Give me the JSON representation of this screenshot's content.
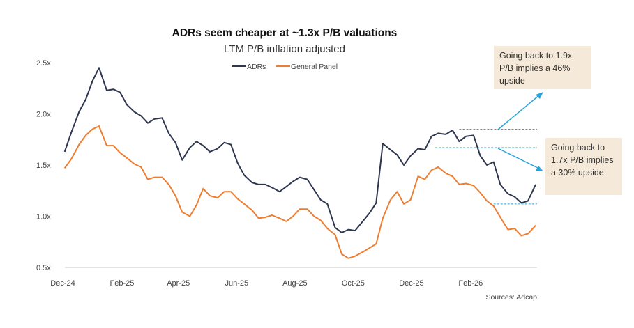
{
  "chart_data": {
    "type": "line",
    "title": "ADRs seem cheaper at ~1.3x P/B valuations",
    "subtitle": "LTM P/B inflation adjusted",
    "xlabel": "",
    "ylabel": "",
    "ylim": [
      0.5,
      2.5
    ],
    "y_ticks": [
      "0.5x",
      "1.0x",
      "1.5x",
      "2.0x",
      "2.5x"
    ],
    "y_tick_values": [
      0.5,
      1.0,
      1.5,
      2.0,
      2.5
    ],
    "x_ticks": [
      "Dec-24",
      "Feb-25",
      "Apr-25",
      "Jun-25",
      "Aug-25",
      "Oct-25",
      "Dec-25",
      "Feb-26"
    ],
    "x_tick_dates": [
      "2024-12-01",
      "2025-02-01",
      "2025-04-01",
      "2025-06-01",
      "2025-08-01",
      "2025-10-01",
      "2025-12-01",
      "2026-02-01"
    ],
    "grid": false,
    "legend_position": "top",
    "x": [
      "2024-12-03",
      "2024-12-10",
      "2024-12-18",
      "2024-12-25",
      "2025-01-01",
      "2025-01-08",
      "2025-01-16",
      "2025-01-23",
      "2025-01-30",
      "2025-02-06",
      "2025-02-14",
      "2025-02-21",
      "2025-02-28",
      "2025-03-07",
      "2025-03-15",
      "2025-03-22",
      "2025-03-29",
      "2025-04-05",
      "2025-04-13",
      "2025-04-20",
      "2025-04-27",
      "2025-05-04",
      "2025-05-12",
      "2025-05-19",
      "2025-05-26",
      "2025-06-02",
      "2025-06-09",
      "2025-06-17",
      "2025-06-24",
      "2025-07-01",
      "2025-07-08",
      "2025-07-16",
      "2025-07-23",
      "2025-07-30",
      "2025-08-06",
      "2025-08-14",
      "2025-08-21",
      "2025-08-28",
      "2025-09-04",
      "2025-09-12",
      "2025-09-19",
      "2025-09-26",
      "2025-10-03",
      "2025-10-11",
      "2025-10-18",
      "2025-10-25",
      "2025-11-01",
      "2025-11-09",
      "2025-11-16",
      "2025-11-23",
      "2025-11-30",
      "2025-12-08",
      "2025-12-15",
      "2025-12-22",
      "2025-12-29",
      "2026-01-06",
      "2026-01-13",
      "2026-01-20",
      "2026-01-27",
      "2026-02-04",
      "2026-02-11",
      "2026-02-18",
      "2026-02-25",
      "2026-03-04",
      "2026-03-12",
      "2026-03-19",
      "2026-03-26",
      "2026-04-02",
      "2026-04-10"
    ],
    "series": [
      {
        "name": "ADRs",
        "color": "#2e3650",
        "values": [
          1.63,
          1.82,
          2.02,
          2.14,
          2.32,
          2.45,
          2.23,
          2.24,
          2.21,
          2.09,
          2.02,
          1.98,
          1.91,
          1.95,
          1.96,
          1.81,
          1.72,
          1.55,
          1.67,
          1.73,
          1.69,
          1.63,
          1.66,
          1.72,
          1.7,
          1.52,
          1.4,
          1.33,
          1.31,
          1.31,
          1.28,
          1.24,
          1.29,
          1.34,
          1.38,
          1.36,
          1.26,
          1.16,
          1.12,
          0.89,
          0.84,
          0.87,
          0.86,
          0.95,
          1.03,
          1.13,
          1.71,
          1.65,
          1.6,
          1.5,
          1.59,
          1.66,
          1.65,
          1.78,
          1.81,
          1.8,
          1.84,
          1.73,
          1.78,
          1.79,
          1.59,
          1.5,
          1.53,
          1.31,
          1.22,
          1.19,
          1.13,
          1.15,
          1.31
        ]
      },
      {
        "name": "General Panel",
        "color": "#ed7d31",
        "values": [
          1.47,
          1.56,
          1.7,
          1.79,
          1.85,
          1.88,
          1.69,
          1.69,
          1.62,
          1.57,
          1.51,
          1.48,
          1.36,
          1.38,
          1.38,
          1.31,
          1.2,
          1.04,
          1.0,
          1.11,
          1.27,
          1.2,
          1.18,
          1.24,
          1.24,
          1.17,
          1.12,
          1.06,
          0.98,
          0.99,
          1.01,
          0.98,
          0.95,
          1.0,
          1.07,
          1.07,
          1.0,
          0.96,
          0.88,
          0.82,
          0.63,
          0.59,
          0.61,
          0.65,
          0.69,
          0.73,
          0.98,
          1.16,
          1.24,
          1.12,
          1.16,
          1.39,
          1.36,
          1.45,
          1.48,
          1.42,
          1.39,
          1.31,
          1.32,
          1.3,
          1.23,
          1.15,
          1.1,
          0.99,
          0.87,
          0.88,
          0.81,
          0.83,
          0.91
        ]
      }
    ],
    "reference_lines": [
      {
        "value": 1.85,
        "from": "2026-01-20",
        "color": "#29a3d9"
      },
      {
        "value": 1.67,
        "from": "2025-12-26",
        "color": "#29a3d9"
      },
      {
        "value": 1.12,
        "from": "2026-02-25",
        "color": "#29a3d9"
      }
    ],
    "annotations": [
      {
        "text": "Going back to 1.9x P/B implies a 46% upside",
        "background": "#f5ead9"
      },
      {
        "text": "Going back to 1.7x P/B implies a 30% upside",
        "background": "#f5ead9"
      }
    ],
    "source": "Sources: Adcap"
  }
}
